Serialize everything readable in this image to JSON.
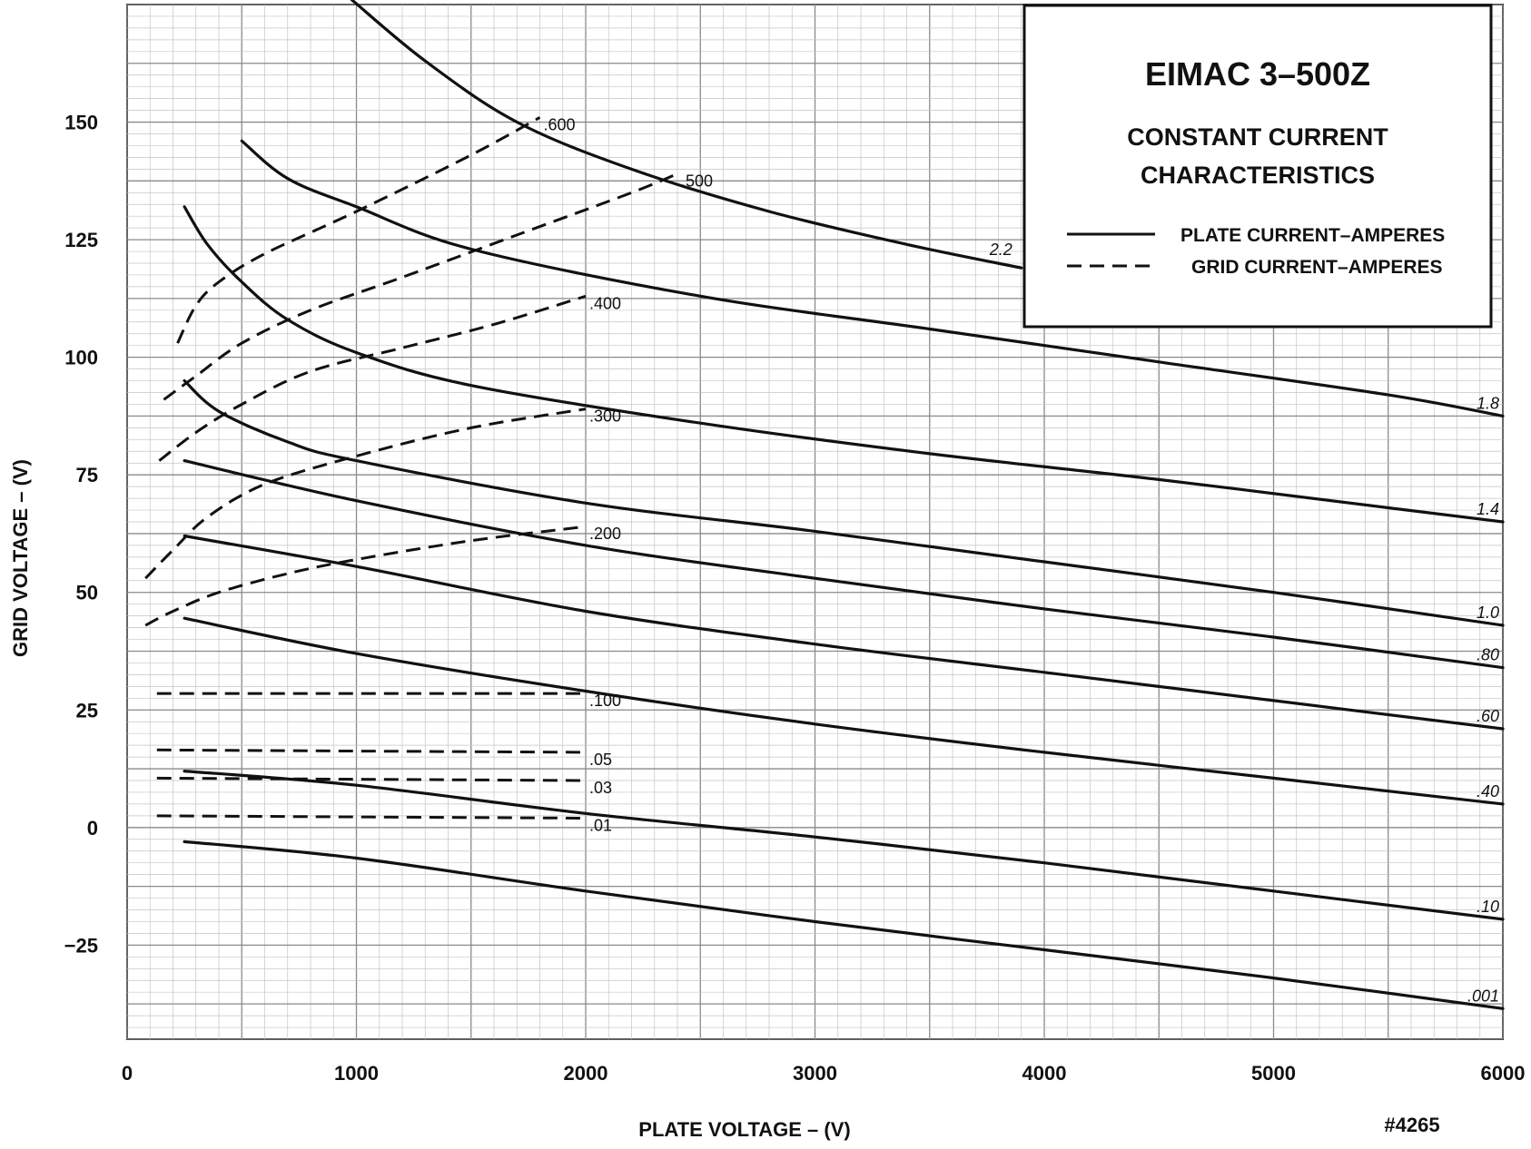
{
  "chart_data": {
    "type": "line",
    "title": "EIMAC 3–500Z",
    "subtitle_lines": [
      "CONSTANT CURRENT",
      "CHARACTERISTICS"
    ],
    "xlabel": "PLATE VOLTAGE – (V)",
    "ylabel": "GRID VOLTAGE – (V)",
    "xlim": [
      0,
      6000
    ],
    "ylim": [
      -45,
      175
    ],
    "x_ticks": [
      0,
      1000,
      2000,
      3000,
      4000,
      5000,
      6000
    ],
    "x_tick_labels": [
      "0",
      "1000",
      "2000",
      "3000",
      "4000",
      "5000",
      "6000"
    ],
    "y_ticks": [
      150,
      125,
      100,
      75,
      50,
      25,
      0,
      -25
    ],
    "y_tick_labels": [
      "150",
      "125",
      "100",
      "75",
      "50",
      "25",
      "0",
      "−25"
    ],
    "grid": true,
    "legend_position": "top-right",
    "legend": [
      {
        "label": "PLATE CURRENT–AMPERES",
        "style": "solid"
      },
      {
        "label": "GRID CURRENT–AMPERES",
        "style": "dashed"
      }
    ],
    "reference": "#4265",
    "plate_current_series": [
      {
        "name": "2.2",
        "points": [
          [
            980,
            176
          ],
          [
            1300,
            163
          ],
          [
            1700,
            150
          ],
          [
            2200,
            140
          ],
          [
            2800,
            131
          ],
          [
            3400,
            124
          ],
          [
            3900,
            119
          ]
        ]
      },
      {
        "name": "1.8",
        "points": [
          [
            500,
            146
          ],
          [
            700,
            138
          ],
          [
            1000,
            132
          ],
          [
            1500,
            123
          ],
          [
            2500,
            113
          ],
          [
            3500,
            106
          ],
          [
            4500,
            99
          ],
          [
            5500,
            92
          ],
          [
            6000,
            87.5
          ]
        ]
      },
      {
        "name": "1.4",
        "points": [
          [
            250,
            132
          ],
          [
            350,
            124
          ],
          [
            500,
            116
          ],
          [
            700,
            108
          ],
          [
            1000,
            101
          ],
          [
            1500,
            94
          ],
          [
            2500,
            86
          ],
          [
            3500,
            79.5
          ],
          [
            4500,
            74
          ],
          [
            5500,
            68
          ],
          [
            6000,
            65
          ]
        ]
      },
      {
        "name": "1.0",
        "points": [
          [
            250,
            95
          ],
          [
            400,
            88.5
          ],
          [
            700,
            82
          ],
          [
            1000,
            78
          ],
          [
            2000,
            69
          ],
          [
            3000,
            63
          ],
          [
            4000,
            56.5
          ],
          [
            5000,
            50
          ],
          [
            6000,
            43
          ]
        ]
      },
      {
        "name": ".80",
        "points": [
          [
            250,
            78
          ],
          [
            1000,
            69.5
          ],
          [
            2000,
            60
          ],
          [
            3000,
            53
          ],
          [
            4000,
            46.5
          ],
          [
            5000,
            40.5
          ],
          [
            6000,
            34
          ]
        ]
      },
      {
        "name": ".60",
        "points": [
          [
            250,
            62
          ],
          [
            1000,
            55.5
          ],
          [
            2000,
            46
          ],
          [
            3000,
            39
          ],
          [
            4000,
            33
          ],
          [
            5000,
            27
          ],
          [
            6000,
            21
          ]
        ]
      },
      {
        "name": ".40",
        "points": [
          [
            250,
            44.5
          ],
          [
            1000,
            37
          ],
          [
            2000,
            29
          ],
          [
            3000,
            22
          ],
          [
            4000,
            16
          ],
          [
            5000,
            10.5
          ],
          [
            6000,
            5
          ]
        ]
      },
      {
        "name": ".10",
        "points": [
          [
            250,
            12
          ],
          [
            1000,
            9
          ],
          [
            2000,
            3
          ],
          [
            3000,
            -2
          ],
          [
            4000,
            -7.5
          ],
          [
            5000,
            -13.5
          ],
          [
            6000,
            -19.5
          ]
        ]
      },
      {
        "name": ".001",
        "points": [
          [
            250,
            -3
          ],
          [
            1000,
            -6.5
          ],
          [
            2000,
            -13.5
          ],
          [
            3000,
            -20
          ],
          [
            4000,
            -26
          ],
          [
            5000,
            -32
          ],
          [
            6000,
            -38.5
          ]
        ]
      }
    ],
    "grid_current_series": [
      {
        "name": ".600",
        "points": [
          [
            220,
            103
          ],
          [
            300,
            111
          ],
          [
            400,
            116
          ],
          [
            600,
            122
          ],
          [
            1000,
            131
          ],
          [
            1500,
            143
          ],
          [
            1800,
            151
          ]
        ]
      },
      {
        "name": ".500",
        "points": [
          [
            160,
            91
          ],
          [
            300,
            96
          ],
          [
            500,
            103
          ],
          [
            800,
            110
          ],
          [
            1200,
            117
          ],
          [
            1700,
            126
          ],
          [
            2200,
            135
          ],
          [
            2400,
            139
          ]
        ]
      },
      {
        "name": ".400",
        "points": [
          [
            140,
            78
          ],
          [
            300,
            84
          ],
          [
            500,
            90
          ],
          [
            800,
            97
          ],
          [
            1200,
            102
          ],
          [
            1600,
            107
          ],
          [
            2000,
            113
          ]
        ]
      },
      {
        "name": ".300",
        "points": [
          [
            80,
            53
          ],
          [
            200,
            59
          ],
          [
            350,
            66
          ],
          [
            600,
            73
          ],
          [
            1000,
            79
          ],
          [
            1500,
            85
          ],
          [
            2000,
            89
          ]
        ]
      },
      {
        "name": ".200",
        "points": [
          [
            80,
            43
          ],
          [
            200,
            46
          ],
          [
            400,
            50
          ],
          [
            700,
            54
          ],
          [
            1000,
            57
          ],
          [
            1500,
            61
          ],
          [
            2000,
            64
          ]
        ]
      },
      {
        "name": ".100",
        "points": [
          [
            130,
            28.5
          ],
          [
            2000,
            28.5
          ]
        ]
      },
      {
        "name": ".05",
        "points": [
          [
            130,
            16.5
          ],
          [
            2000,
            16
          ]
        ]
      },
      {
        "name": ".03",
        "points": [
          [
            130,
            10.5
          ],
          [
            2000,
            10
          ]
        ]
      },
      {
        "name": ".01",
        "points": [
          [
            130,
            2.5
          ],
          [
            2000,
            2
          ]
        ]
      }
    ]
  }
}
